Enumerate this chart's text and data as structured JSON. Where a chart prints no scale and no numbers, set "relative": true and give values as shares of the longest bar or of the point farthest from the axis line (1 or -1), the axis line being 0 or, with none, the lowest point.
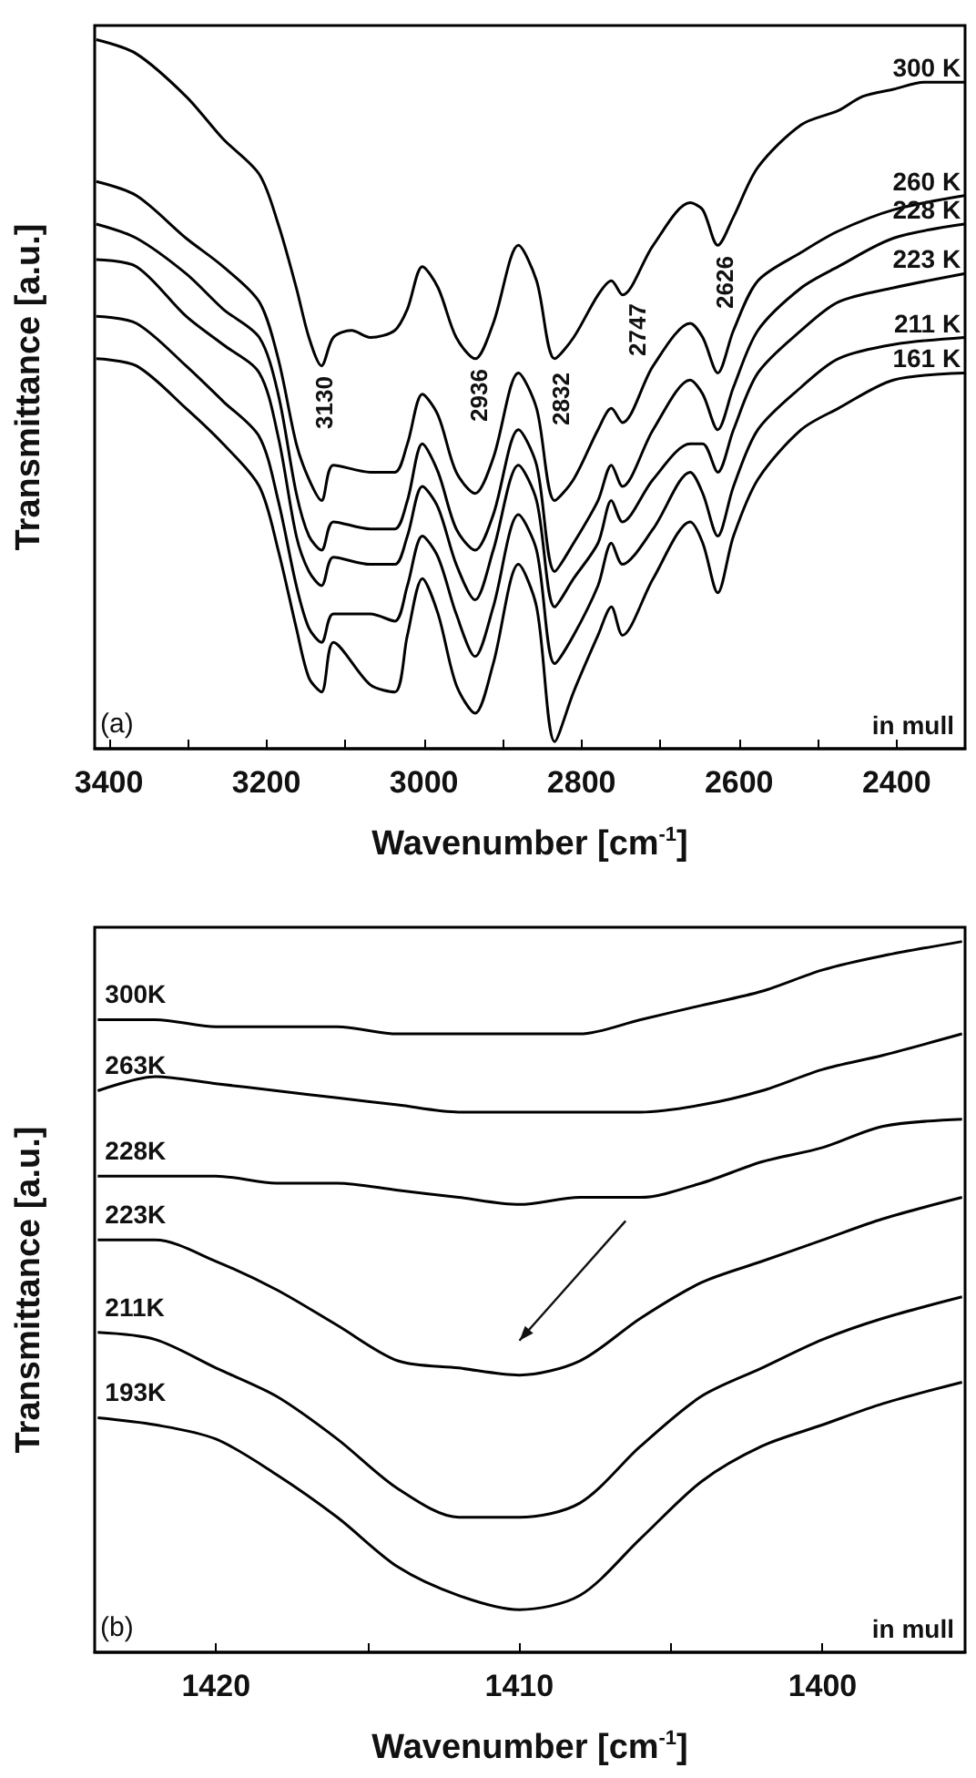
{
  "chart_data": [
    {
      "type": "line",
      "relative": true,
      "xlabel": "Wavenumber [cm$^{-1}$]",
      "ylabel": "Transmittance [a.u.]",
      "xlim": [
        3418,
        2313
      ],
      "xticks": [
        3400,
        {
          "value": 3300,
          "label": null
        },
        3200,
        {
          "value": 3100,
          "label": null
        },
        3000,
        {
          "value": 2900,
          "label": null
        },
        2800,
        {
          "value": 2700,
          "label": null
        },
        2600,
        {
          "value": 2500,
          "label": null
        },
        2400
      ],
      "grid": false,
      "legend": false,
      "marker": "none",
      "line_style": "solid",
      "annotations": [
        "3130",
        "2936",
        "2832",
        "2747",
        "2626",
        "(a)",
        "in mull"
      ],
      "series": [
        {
          "name": "300 K",
          "color": "#000000",
          "x": [
            3416,
            3365,
            3302,
            3255,
            3209,
            3185,
            3162,
            3146,
            3130,
            3115,
            3092,
            3068,
            3037,
            3021,
            3002,
            2982,
            2959,
            2935,
            2912,
            2880,
            2857,
            2834,
            2810,
            2779,
            2762,
            2748,
            2709,
            2662,
            2646,
            2627,
            2607,
            2576,
            2521,
            2474,
            2443,
            2404,
            2365,
            2314
          ],
          "values": [
            1.0,
            0.98,
            0.92,
            0.86,
            0.81,
            0.74,
            0.65,
            0.58,
            0.54,
            0.58,
            0.59,
            0.58,
            0.59,
            0.62,
            0.68,
            0.65,
            0.58,
            0.55,
            0.6,
            0.71,
            0.66,
            0.55,
            0.58,
            0.64,
            0.66,
            0.64,
            0.71,
            0.77,
            0.76,
            0.71,
            0.75,
            0.82,
            0.88,
            0.9,
            0.92,
            0.93,
            0.94,
            0.94
          ]
        },
        {
          "name": "260 K",
          "color": "#000000",
          "x": [
            3416,
            3365,
            3302,
            3255,
            3209,
            3185,
            3162,
            3146,
            3130,
            3115,
            3068,
            3037,
            3021,
            3002,
            2982,
            2959,
            2935,
            2912,
            2880,
            2857,
            2834,
            2810,
            2779,
            2762,
            2748,
            2709,
            2662,
            2646,
            2627,
            2607,
            2576,
            2521,
            2474,
            2404,
            2314
          ],
          "values": [
            0.8,
            0.78,
            0.72,
            0.68,
            0.63,
            0.55,
            0.43,
            0.38,
            0.35,
            0.4,
            0.39,
            0.39,
            0.43,
            0.5,
            0.47,
            0.39,
            0.36,
            0.41,
            0.53,
            0.48,
            0.35,
            0.38,
            0.45,
            0.48,
            0.46,
            0.54,
            0.6,
            0.58,
            0.53,
            0.59,
            0.66,
            0.7,
            0.73,
            0.76,
            0.78
          ]
        },
        {
          "name": "228 K",
          "color": "#000000",
          "x": [
            3416,
            3365,
            3302,
            3255,
            3209,
            3185,
            3162,
            3146,
            3130,
            3115,
            3068,
            3037,
            3021,
            3002,
            2982,
            2959,
            2935,
            2912,
            2880,
            2857,
            2834,
            2810,
            2779,
            2762,
            2748,
            2709,
            2662,
            2646,
            2627,
            2607,
            2576,
            2521,
            2474,
            2404,
            2314
          ],
          "values": [
            0.74,
            0.72,
            0.67,
            0.62,
            0.58,
            0.5,
            0.36,
            0.3,
            0.28,
            0.32,
            0.31,
            0.31,
            0.35,
            0.43,
            0.39,
            0.31,
            0.28,
            0.33,
            0.45,
            0.4,
            0.25,
            0.29,
            0.35,
            0.4,
            0.37,
            0.45,
            0.52,
            0.5,
            0.45,
            0.51,
            0.59,
            0.65,
            0.68,
            0.72,
            0.74
          ]
        },
        {
          "name": "223 K",
          "color": "#000000",
          "x": [
            3416,
            3365,
            3302,
            3255,
            3209,
            3185,
            3162,
            3146,
            3130,
            3115,
            3068,
            3037,
            3021,
            3002,
            2982,
            2959,
            2935,
            2912,
            2880,
            2857,
            2834,
            2810,
            2779,
            2762,
            2748,
            2709,
            2662,
            2646,
            2627,
            2607,
            2576,
            2521,
            2474,
            2404,
            2314
          ],
          "values": [
            0.69,
            0.68,
            0.61,
            0.57,
            0.53,
            0.44,
            0.3,
            0.25,
            0.23,
            0.27,
            0.26,
            0.26,
            0.3,
            0.37,
            0.34,
            0.26,
            0.21,
            0.28,
            0.4,
            0.35,
            0.2,
            0.24,
            0.29,
            0.35,
            0.32,
            0.38,
            0.43,
            0.43,
            0.39,
            0.45,
            0.53,
            0.59,
            0.63,
            0.65,
            0.67
          ]
        },
        {
          "name": "211 K",
          "color": "#000000",
          "x": [
            3416,
            3365,
            3302,
            3255,
            3209,
            3185,
            3162,
            3146,
            3130,
            3115,
            3068,
            3037,
            3021,
            3002,
            2982,
            2959,
            2935,
            2912,
            2880,
            2857,
            2834,
            2810,
            2779,
            2762,
            2748,
            2709,
            2662,
            2646,
            2627,
            2607,
            2576,
            2521,
            2474,
            2404,
            2314
          ],
          "values": [
            0.61,
            0.6,
            0.54,
            0.49,
            0.44,
            0.35,
            0.23,
            0.17,
            0.15,
            0.19,
            0.19,
            0.18,
            0.23,
            0.3,
            0.27,
            0.19,
            0.13,
            0.2,
            0.33,
            0.28,
            0.12,
            0.16,
            0.23,
            0.29,
            0.26,
            0.31,
            0.39,
            0.36,
            0.3,
            0.37,
            0.45,
            0.51,
            0.55,
            0.57,
            0.58
          ]
        },
        {
          "name": "161 K",
          "color": "#000000",
          "x": [
            3416,
            3365,
            3302,
            3255,
            3209,
            3185,
            3162,
            3146,
            3130,
            3115,
            3068,
            3037,
            3021,
            3002,
            2982,
            2959,
            2935,
            2912,
            2880,
            2857,
            2834,
            2810,
            2779,
            2762,
            2748,
            2709,
            2662,
            2646,
            2627,
            2607,
            2576,
            2521,
            2474,
            2404,
            2314
          ],
          "values": [
            0.55,
            0.54,
            0.48,
            0.43,
            0.37,
            0.28,
            0.17,
            0.1,
            0.08,
            0.15,
            0.09,
            0.08,
            0.16,
            0.24,
            0.19,
            0.09,
            0.05,
            0.12,
            0.26,
            0.2,
            0.01,
            0.08,
            0.16,
            0.2,
            0.16,
            0.24,
            0.32,
            0.29,
            0.22,
            0.3,
            0.38,
            0.45,
            0.48,
            0.52,
            0.53
          ]
        }
      ]
    },
    {
      "type": "line",
      "relative": true,
      "xlabel": "Wavenumber [cm$^{-1}$]",
      "ylabel": "Transmittance [a.u.]",
      "xlim": [
        1424,
        1395.3
      ],
      "xticks": [
        1420,
        {
          "value": 1415,
          "label": null
        },
        1410,
        {
          "value": 1405,
          "label": null
        },
        1400
      ],
      "grid": false,
      "legend": false,
      "marker": "none",
      "line_style": "solid",
      "annotations": [
        "(b)",
        "in mull"
      ],
      "series": [
        {
          "name": "300K",
          "color": "#000000",
          "x": [
            1423.9,
            1422,
            1420,
            1418,
            1416,
            1414,
            1412,
            1410,
            1408,
            1406,
            1404,
            1402,
            1400,
            1398,
            1395.4
          ],
          "values": [
            0.89,
            0.89,
            0.88,
            0.88,
            0.88,
            0.87,
            0.87,
            0.87,
            0.87,
            0.89,
            0.91,
            0.93,
            0.96,
            0.98,
            1.0
          ]
        },
        {
          "name": "263K",
          "color": "#000000",
          "x": [
            1423.9,
            1422,
            1420,
            1418,
            1416,
            1414,
            1412,
            1410,
            1408,
            1406,
            1404,
            1402,
            1400,
            1398,
            1395.4
          ],
          "values": [
            0.79,
            0.81,
            0.8,
            0.79,
            0.78,
            0.77,
            0.76,
            0.76,
            0.76,
            0.76,
            0.77,
            0.79,
            0.82,
            0.84,
            0.87
          ]
        },
        {
          "name": "228K",
          "color": "#000000",
          "x": [
            1423.9,
            1422,
            1420,
            1418,
            1416,
            1414,
            1412,
            1410,
            1408,
            1406,
            1404,
            1402,
            1400,
            1398,
            1395.4
          ],
          "values": [
            0.67,
            0.67,
            0.67,
            0.66,
            0.66,
            0.65,
            0.64,
            0.63,
            0.64,
            0.64,
            0.66,
            0.69,
            0.71,
            0.74,
            0.75
          ]
        },
        {
          "name": "223K",
          "color": "#000000",
          "x": [
            1423.9,
            1422,
            1420,
            1418,
            1416,
            1414,
            1412,
            1410,
            1408,
            1406,
            1404,
            1402,
            1400,
            1398,
            1395.4
          ],
          "values": [
            0.58,
            0.58,
            0.55,
            0.51,
            0.46,
            0.41,
            0.4,
            0.39,
            0.41,
            0.47,
            0.52,
            0.55,
            0.58,
            0.61,
            0.64
          ]
        },
        {
          "name": "211K",
          "color": "#000000",
          "x": [
            1423.9,
            1422,
            1420,
            1418,
            1416,
            1414,
            1412,
            1410,
            1408,
            1406,
            1404,
            1402,
            1400,
            1398,
            1395.4
          ],
          "values": [
            0.45,
            0.44,
            0.4,
            0.36,
            0.3,
            0.23,
            0.19,
            0.19,
            0.21,
            0.29,
            0.36,
            0.4,
            0.44,
            0.47,
            0.5
          ]
        },
        {
          "name": "193K",
          "color": "#000000",
          "x": [
            1423.9,
            1422,
            1420,
            1418,
            1416,
            1414,
            1412,
            1410,
            1408,
            1406,
            1404,
            1402,
            1400,
            1398,
            1395.4
          ],
          "values": [
            0.33,
            0.32,
            0.3,
            0.25,
            0.19,
            0.12,
            0.08,
            0.06,
            0.08,
            0.16,
            0.24,
            0.29,
            0.32,
            0.35,
            0.38
          ]
        }
      ]
    }
  ]
}
